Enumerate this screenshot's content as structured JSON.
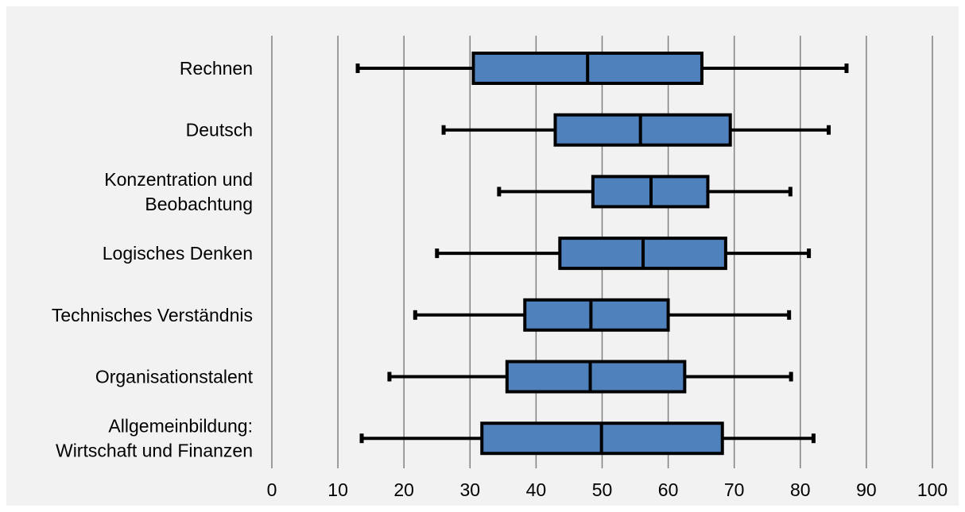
{
  "chart_data": {
    "type": "boxplot",
    "orientation": "horizontal",
    "title": "",
    "xlabel": "",
    "ylabel": "",
    "xlim": [
      0,
      100
    ],
    "xticks": [
      "0",
      "10",
      "20",
      "30",
      "40",
      "50",
      "60",
      "70",
      "80",
      "90",
      "100"
    ],
    "grid": "vertical",
    "legend": "none",
    "categories": [
      [
        "Rechnen"
      ],
      [
        "Deutsch"
      ],
      [
        "Konzentration und",
        "Beobachtung"
      ],
      [
        "Logisches Denken"
      ],
      [
        "Technisches Verständnis"
      ],
      [
        "Organisationstalent"
      ],
      [
        "Allgemeinbildung:",
        "Wirtschaft und Finanzen"
      ]
    ],
    "boxes": [
      {
        "min": 13,
        "q1": 30.5,
        "median": 47.8,
        "q3": 65.1,
        "max": 87
      },
      {
        "min": 26,
        "q1": 42.9,
        "median": 55.8,
        "q3": 69.4,
        "max": 84.3
      },
      {
        "min": 34.4,
        "q1": 48.6,
        "median": 57.4,
        "q3": 66.0,
        "max": 78.5
      },
      {
        "min": 25,
        "q1": 43.6,
        "median": 56.2,
        "q3": 68.7,
        "max": 81.3
      },
      {
        "min": 21.7,
        "q1": 38.3,
        "median": 48.3,
        "q3": 60.0,
        "max": 78.3
      },
      {
        "min": 17.8,
        "q1": 35.6,
        "median": 48.2,
        "q3": 62.5,
        "max": 78.6
      },
      {
        "min": 13.6,
        "q1": 31.8,
        "median": 49.9,
        "q3": 68.2,
        "max": 82
      }
    ],
    "colors": {
      "box_fill": "#4f81bd",
      "box_stroke": "#000000",
      "whisker": "#000000",
      "gridline": "#808080",
      "background": "#f2f2f2"
    }
  }
}
